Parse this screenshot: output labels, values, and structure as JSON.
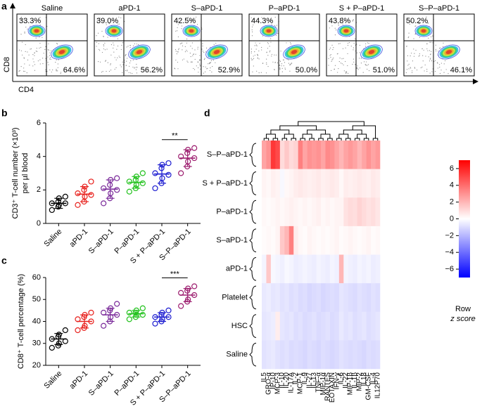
{
  "flow": {
    "letter": "a",
    "ylabel": "CD8",
    "xlabel": "CD4",
    "plots": [
      {
        "name": "Saline",
        "values": [
          33.3,
          64.6
        ],
        "value_labels": [
          "33.3%",
          "64.6%"
        ]
      },
      {
        "name": "aPD-1",
        "values": [
          39.0,
          56.2
        ],
        "value_labels": [
          "39.0%",
          "56.2%"
        ]
      },
      {
        "name": "S–aPD-1",
        "values": [
          42.5,
          52.9
        ],
        "value_labels": [
          "42.5%",
          "52.9%"
        ]
      },
      {
        "name": "P–aPD-1",
        "values": [
          44.3,
          50.0
        ],
        "value_labels": [
          "44.3%",
          "50.0%"
        ]
      },
      {
        "name": "S + P–aPD-1",
        "values": [
          43.8,
          51.0
        ],
        "value_labels": [
          "43.8%",
          "51.0%"
        ]
      },
      {
        "name": "S–P–aPD-1",
        "values": [
          50.2,
          46.1
        ],
        "value_labels": [
          "50.2%",
          "46.1%"
        ]
      }
    ]
  },
  "cd3": {
    "type": "dot",
    "letter": "b",
    "ylabel": [
      "CD3⁺ T-cell number (×10³)",
      "per µl blood"
    ],
    "ylim": [
      0,
      6
    ],
    "yticks": [
      0,
      2,
      4,
      6
    ],
    "annotation": "**",
    "series": [
      {
        "name": "Saline",
        "color": "#000000",
        "values": [
          0.8,
          1.0,
          1.1,
          1.2,
          1.2,
          1.3,
          1.5,
          1.6
        ],
        "mean": 1.2,
        "sd": 0.3
      },
      {
        "name": "aPD-1",
        "color": "#e8211d",
        "values": [
          1.1,
          1.3,
          1.6,
          1.7,
          1.8,
          2.0,
          2.2,
          2.5
        ],
        "mean": 1.75,
        "sd": 0.45
      },
      {
        "name": "S–aPD-1",
        "color": "#7a2a9a",
        "values": [
          1.2,
          1.5,
          1.8,
          2.0,
          2.1,
          2.3,
          2.6,
          2.7
        ],
        "mean": 2.05,
        "sd": 0.55
      },
      {
        "name": "P–aPD-1",
        "color": "#22c21d",
        "values": [
          1.9,
          2.1,
          2.3,
          2.4,
          2.5,
          2.6,
          2.8,
          3.0
        ],
        "mean": 2.45,
        "sd": 0.35
      },
      {
        "name": "S + P–aPD-1",
        "color": "#1c1cd0",
        "values": [
          2.1,
          2.4,
          2.7,
          2.9,
          3.0,
          3.3,
          3.5,
          3.6
        ],
        "mean": 2.95,
        "sd": 0.55
      },
      {
        "name": "S–P–aPD-1",
        "color": "#9c1c6e",
        "values": [
          3.0,
          3.4,
          3.7,
          3.9,
          4.0,
          4.2,
          4.4,
          4.5
        ],
        "mean": 3.9,
        "sd": 0.5
      }
    ]
  },
  "cd8": {
    "type": "dot",
    "letter": "c",
    "ylabel": [
      "CD8⁺ T-cell percentage (%)"
    ],
    "ylim": [
      20,
      60
    ],
    "yticks": [
      20,
      30,
      40,
      50,
      60
    ],
    "annotation": "***",
    "series": [
      {
        "name": "Saline",
        "color": "#000000",
        "values": [
          28,
          29,
          30,
          31,
          32,
          33,
          34,
          36
        ],
        "mean": 32,
        "sd": 2.5
      },
      {
        "name": "aPD-1",
        "color": "#e8211d",
        "values": [
          36,
          37,
          38,
          40,
          41,
          42,
          43,
          44
        ],
        "mean": 40,
        "sd": 3
      },
      {
        "name": "S–aPD-1",
        "color": "#7a2a9a",
        "values": [
          38,
          40,
          42,
          43,
          44,
          45,
          46,
          48
        ],
        "mean": 43,
        "sd": 3
      },
      {
        "name": "P–aPD-1",
        "color": "#22c21d",
        "values": [
          41,
          42,
          43,
          43,
          44,
          44,
          45,
          46
        ],
        "mean": 43.5,
        "sd": 1.5
      },
      {
        "name": "S + P–aPD-1",
        "color": "#1c1cd0",
        "values": [
          39,
          40,
          41,
          42,
          42,
          43,
          44,
          45
        ],
        "mean": 42,
        "sd": 2
      },
      {
        "name": "S–P–aPD-1",
        "color": "#9c1c6e",
        "values": [
          47,
          49,
          50,
          52,
          53,
          54,
          55,
          56
        ],
        "mean": 52,
        "sd": 3
      }
    ]
  },
  "heatmap": {
    "type": "heatmap",
    "letter": "d",
    "rows": [
      "S–P–aPD-1",
      "S + P–aPD-1",
      "P–aPD-1",
      "S–aPD-1",
      "aPD-1",
      "Platelet",
      "HSC",
      "Saline"
    ],
    "columns": [
      "IL5",
      "GRO-α",
      "IP-10",
      "MCP-3",
      "IL-10",
      "IL-20",
      "IL-17A",
      "IL-2",
      "MCP-1",
      "IL-9",
      "IL-27",
      "IL-13",
      "TNF-α",
      "MIP-1α",
      "RANTES",
      "EOTAXIN",
      "IFN-γ",
      "IL-6",
      "IL-22",
      "MIP-1β",
      "IL-1β",
      "MIP-2",
      "IL18",
      "GM-CSF",
      "IL-4",
      "IL12P70"
    ],
    "values": [
      [
        2.5,
        3.0,
        5.5,
        5.0,
        1.0,
        1.5,
        1.0,
        1.2,
        3.5,
        2.5,
        3.0,
        2.8,
        3.0,
        2.5,
        3.2,
        3.0,
        2.5,
        2.0,
        2.5,
        2.8,
        2.5,
        2.0,
        2.5,
        3.0,
        2.5,
        2.8
      ],
      [
        0.3,
        0.2,
        0.4,
        0.3,
        -0.2,
        0.2,
        0.3,
        0.5,
        0.6,
        0.5,
        0.4,
        0.5,
        0.6,
        0.4,
        0.5,
        0.6,
        0.5,
        0.2,
        0.5,
        0.4,
        0.5,
        0.6,
        0.5,
        0.4,
        0.6,
        0.5
      ],
      [
        0.2,
        0.1,
        0.2,
        0.3,
        0.2,
        0.3,
        0.4,
        0.3,
        0.2,
        0.3,
        0.2,
        0.3,
        0.4,
        0.2,
        0.3,
        0.2,
        0.3,
        0.3,
        0.8,
        1.0,
        0.9,
        1.2,
        1.0,
        0.8,
        0.9,
        0.7
      ],
      [
        0.1,
        0.2,
        0.1,
        0.3,
        1.5,
        2.0,
        3.5,
        0.5,
        0.2,
        0.1,
        0.3,
        0.2,
        0.1,
        0.2,
        0.1,
        0.2,
        0.3,
        0.1,
        0.2,
        0.3,
        0.2,
        0.1,
        0.2,
        0.3,
        0.1,
        0.2
      ],
      [
        -0.3,
        1.5,
        -0.2,
        -0.3,
        -0.4,
        -0.2,
        -0.3,
        -0.5,
        -0.4,
        -0.3,
        -0.4,
        -0.5,
        -0.3,
        -0.4,
        -0.5,
        -0.3,
        -0.4,
        2.0,
        -0.3,
        -0.4,
        -0.5,
        -0.3,
        -0.4,
        -0.3,
        -0.5,
        -0.4
      ],
      [
        -0.6,
        -0.5,
        -0.7,
        -0.6,
        -0.8,
        -0.7,
        -0.9,
        -0.8,
        -1.0,
        -0.9,
        -1.1,
        -1.0,
        -0.9,
        -1.1,
        -1.0,
        -0.9,
        -1.0,
        -0.7,
        -0.8,
        -0.9,
        -1.0,
        -0.8,
        -0.9,
        -1.0,
        -0.8,
        -0.9
      ],
      [
        -0.7,
        -0.6,
        -0.5,
        0.5,
        -0.7,
        -0.8,
        -0.7,
        -0.9,
        -0.8,
        -1.0,
        -0.9,
        -0.8,
        -1.0,
        -0.9,
        -0.8,
        -1.0,
        -0.9,
        -0.6,
        -0.8,
        -0.7,
        -0.9,
        -0.8,
        -0.7,
        -0.9,
        -0.8,
        -0.7
      ],
      [
        -0.8,
        -0.7,
        -0.6,
        -0.8,
        -0.9,
        -0.8,
        -1.0,
        -0.9,
        -1.0,
        -1.1,
        -0.9,
        -1.0,
        -1.1,
        -0.9,
        -1.0,
        -1.1,
        -1.0,
        -0.8,
        -0.9,
        -1.0,
        -0.9,
        -1.0,
        -1.1,
        -0.9,
        -1.0,
        -0.9
      ]
    ],
    "zlim": [
      -7,
      7
    ],
    "colors": [
      "#0000ff",
      "#ffffff",
      "#ff0000"
    ],
    "zticks": [
      6,
      4,
      2,
      0,
      {
        "value": -2,
        "label": "−2"
      },
      {
        "value": -4,
        "label": "−4"
      },
      {
        "value": -6,
        "label": "−6"
      }
    ],
    "colorbar_label": [
      "Row",
      "z score"
    ]
  }
}
